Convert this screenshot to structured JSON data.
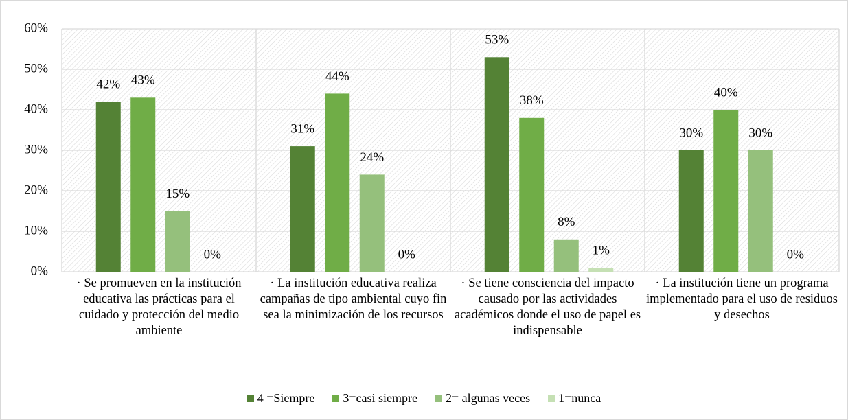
{
  "chart_data": {
    "type": "bar",
    "categories": [
      "· Se promueven en la institución educativa las prácticas para el cuidado y protección del medio ambiente",
      "· La institución educativa realiza campañas de tipo ambiental cuyo fin sea la minimización de los recursos",
      "· Se tiene consciencia del impacto causado por las actividades académicos donde el uso de papel es indispensable",
      "· La institución tiene un programa implementado para el uso de residuos y desechos"
    ],
    "series": [
      {
        "name": "4 =Siempre",
        "color": "#548235",
        "values": [
          42,
          31,
          53,
          30
        ],
        "value_labels": [
          "42%",
          "31%",
          "53%",
          "30%"
        ]
      },
      {
        "name": "3=casi siempre",
        "color": "#70ad47",
        "values": [
          43,
          44,
          38,
          40
        ],
        "value_labels": [
          "43%",
          "44%",
          "38%",
          "40%"
        ]
      },
      {
        "name": "2= algunas veces",
        "color": "#95c07c",
        "values": [
          15,
          24,
          8,
          30
        ],
        "value_labels": [
          "15%",
          "24%",
          "8%",
          "30%"
        ]
      },
      {
        "name": "1=nunca",
        "color": "#c5e0b4",
        "values": [
          0,
          0,
          1,
          0
        ],
        "value_labels": [
          "0%",
          "0%",
          "1%",
          "0%"
        ]
      }
    ],
    "ylim": [
      0,
      60
    ],
    "yticks": [
      {
        "value": 0,
        "label": "0%"
      },
      {
        "value": 10,
        "label": "10%"
      },
      {
        "value": 20,
        "label": "20%"
      },
      {
        "value": 30,
        "label": "30%"
      },
      {
        "value": 40,
        "label": "40%"
      },
      {
        "value": 50,
        "label": "50%"
      },
      {
        "value": 60,
        "label": "60%"
      }
    ],
    "grid": true,
    "legend": "bottom"
  }
}
